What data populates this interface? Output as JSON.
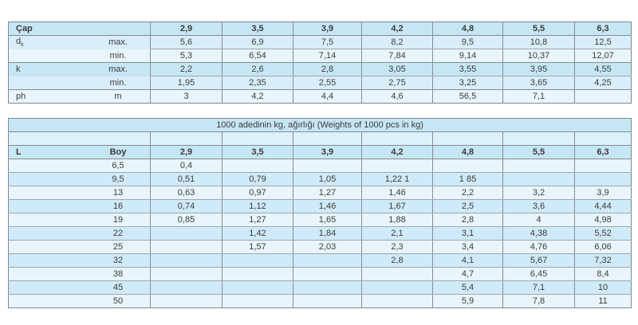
{
  "colors": {
    "header_row_bg": "#c6e6f4",
    "dark_row_bg": "#cfeaf8",
    "mid_row_bg": "#d9eefa",
    "light_row_bg": "#e8f5fc",
    "empty_row_bg": "#ddf1fa",
    "outer_border": "#7d8890",
    "grid_vertical": "#848f97",
    "grid_horizontal": "#9fa8ae",
    "text": "#3c3c3c"
  },
  "spec_table": {
    "corner_label": "Çap",
    "columns": [
      "2,9",
      "3,5",
      "3,9",
      "4,2",
      "4,8",
      "5,5",
      "6,3"
    ],
    "rows": [
      {
        "label": "d",
        "label_sub": "k",
        "measure": "max.",
        "shade": "mid",
        "values": [
          "5,6",
          "6,9",
          "7,5",
          "8,2",
          "9,5",
          "10,8",
          "12,5"
        ],
        "group_end": false
      },
      {
        "label": "",
        "label_sub": "",
        "measure": "min.",
        "shade": "light",
        "values": [
          "5,3",
          "6,54",
          "7,14",
          "7,84",
          "9,14",
          "10,37",
          "12,07"
        ],
        "group_end": true
      },
      {
        "label": "k",
        "label_sub": "",
        "measure": "max.",
        "shade": "header",
        "values": [
          "2,2",
          "2,6",
          "2,8",
          "3,05",
          "3,55",
          "3,95",
          "4,55"
        ],
        "group_end": false
      },
      {
        "label": "",
        "label_sub": "",
        "measure": "min.",
        "shade": "mid",
        "values": [
          "1,95",
          "2,35",
          "2,55",
          "2,75",
          "3,25",
          "3,65",
          "4,25"
        ],
        "group_end": true
      },
      {
        "label": "ph",
        "label_sub": "",
        "measure": "m",
        "shade": "light",
        "values": [
          "3",
          "4,2",
          "4,4",
          "4,6",
          "56,5",
          "7,1",
          ""
        ],
        "group_end": true
      }
    ]
  },
  "weights_table": {
    "title": "1000 adedinin kg, ağırlığı (Weights of 1000 pcs in kg)",
    "corner_label_l": "L",
    "corner_label_boy": "Boy",
    "columns": [
      "2,9",
      "3,5",
      "3,9",
      "4,2",
      "4,8",
      "5,5",
      "6,3"
    ],
    "rows": [
      {
        "boy": "6,5",
        "values": [
          "0,4",
          "",
          "",
          "",
          "",
          "",
          ""
        ]
      },
      {
        "boy": "9,5",
        "values": [
          "0,51",
          "0,79",
          "1,05",
          "1,22 1",
          "1 85",
          "",
          ""
        ]
      },
      {
        "boy": "13",
        "values": [
          "0,63",
          "0,97",
          "1,27",
          "1,46",
          "2,2",
          "3,2",
          "3,9"
        ]
      },
      {
        "boy": "16",
        "values": [
          "0,74",
          "1,12",
          "1,46",
          "1,67",
          "2,5",
          "3,6",
          "4,44"
        ]
      },
      {
        "boy": "19",
        "values": [
          "0,85",
          "1,27",
          "1,65",
          "1,88",
          "2,8",
          "4",
          "4,98"
        ]
      },
      {
        "boy": "22",
        "values": [
          "",
          "1,42",
          "1,84",
          "2,1",
          "3,1",
          "4,38",
          "5,52"
        ]
      },
      {
        "boy": "25",
        "values": [
          "",
          "1,57",
          "2,03",
          "2,3",
          "3,4",
          "4,76",
          "6,06"
        ]
      },
      {
        "boy": "32",
        "values": [
          "",
          "",
          "",
          "2,8",
          "4,1",
          "5,67",
          "7,32"
        ]
      },
      {
        "boy": "38",
        "values": [
          "",
          "",
          "",
          "",
          "4,7",
          "6,45",
          "8,4"
        ]
      },
      {
        "boy": "45",
        "values": [
          "",
          "",
          "",
          "",
          "5,4",
          "7,1",
          "10"
        ]
      },
      {
        "boy": "50",
        "values": [
          "",
          "",
          "",
          "",
          "5,9",
          "7,8",
          "11"
        ]
      }
    ]
  }
}
